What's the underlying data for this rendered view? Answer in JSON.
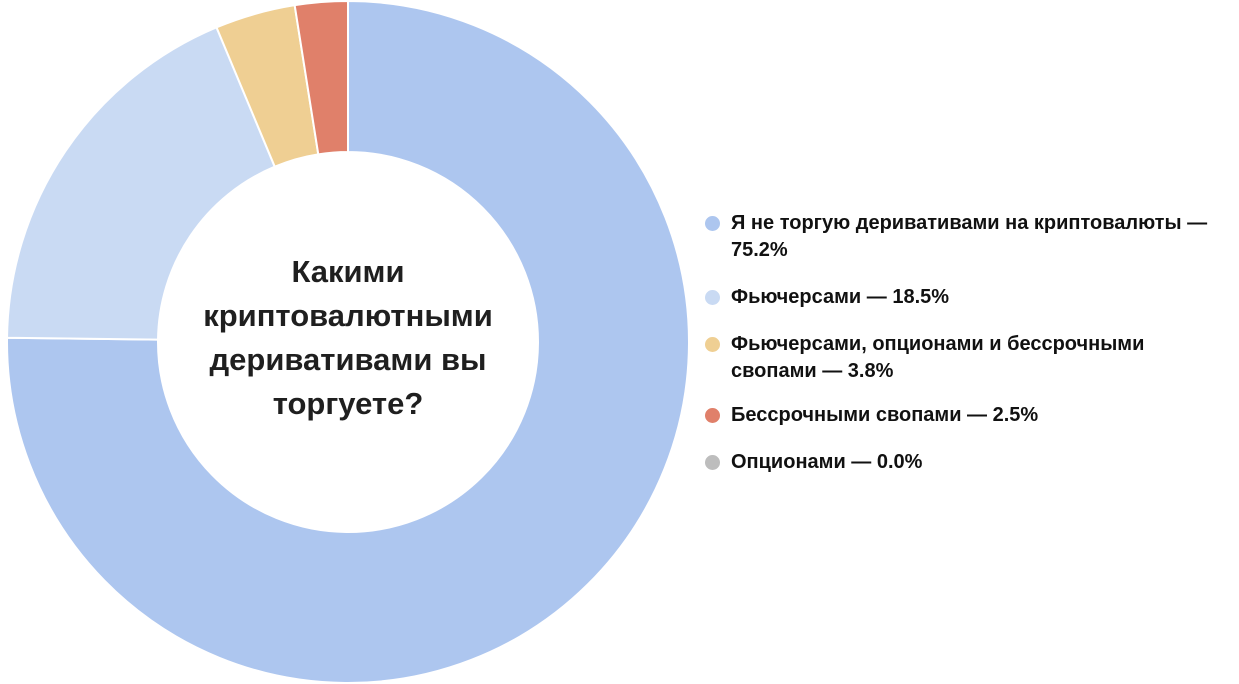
{
  "chart_data": {
    "type": "pie",
    "donut": true,
    "title": "Какими криптовалютными деривативами вы торгуете?",
    "start_angle": "top",
    "direction": "clockwise",
    "legend_position": "right",
    "slices": [
      {
        "label": "Я не торгую деривативами на криптовалюты — 75.2%",
        "value": 75.2,
        "color": "#adc6ef"
      },
      {
        "label": "Фьючерсами — 18.5%",
        "value": 18.5,
        "color": "#c9daf3"
      },
      {
        "label": "Фьючерсами, опционами и бессрочными свопами — 3.8%",
        "value": 3.8,
        "color": "#efcf93"
      },
      {
        "label": "Бессрочными свопами — 2.5%",
        "value": 2.5,
        "color": "#e0806a"
      },
      {
        "label": "Опционами — 0.0%",
        "value": 0.0,
        "color": "#bdbdbd"
      }
    ]
  }
}
